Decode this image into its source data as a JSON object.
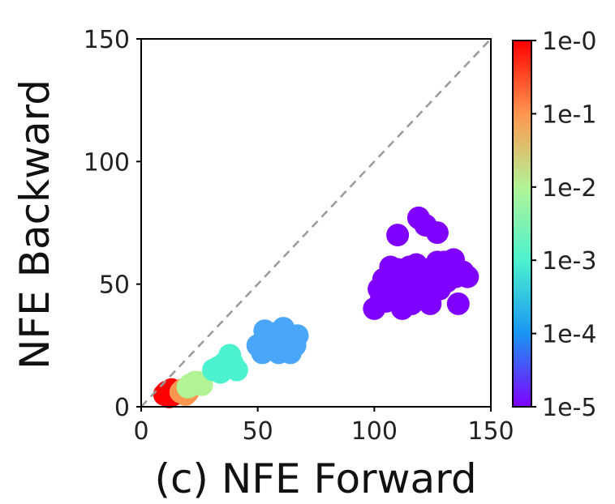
{
  "chart_data": {
    "type": "scatter",
    "xlabel": "(c) NFE Forward",
    "ylabel": "NFE Backward",
    "xlim": [
      0,
      150
    ],
    "ylim": [
      0,
      150
    ],
    "x_ticks": [
      "0",
      "50",
      "100",
      "150"
    ],
    "y_ticks": [
      "0",
      "50",
      "100",
      "150"
    ],
    "reference_line": {
      "from": [
        0,
        0
      ],
      "to": [
        150,
        150
      ],
      "style": "dashed",
      "color": "#999999"
    },
    "grid": false,
    "legend": "none",
    "colorbar": {
      "scale": "log",
      "ticks": [
        "1e-0",
        "1e-1",
        "1e-2",
        "1e-3",
        "1e-4",
        "1e-5"
      ],
      "colormap": [
        "#8000ff",
        "#1996f3",
        "#4cf2ce",
        "#b2f396",
        "#ff964f",
        "#ff0000"
      ]
    },
    "series": [
      {
        "color": "#ff0000",
        "points": [
          [
            10,
            5
          ],
          [
            12,
            4
          ],
          [
            14,
            5
          ],
          [
            11,
            6
          ],
          [
            13,
            7
          ],
          [
            12,
            5
          ]
        ]
      },
      {
        "color": "#ff964f",
        "points": [
          [
            17,
            6
          ],
          [
            19,
            5
          ],
          [
            20,
            6
          ],
          [
            18,
            7
          ]
        ]
      },
      {
        "color": "#b2f396",
        "points": [
          [
            20,
            8
          ],
          [
            22,
            9
          ],
          [
            24,
            10
          ],
          [
            26,
            9
          ],
          [
            23,
            10
          ],
          [
            21,
            9
          ]
        ]
      },
      {
        "color": "#4cf2ce",
        "points": [
          [
            31,
            15
          ],
          [
            34,
            14
          ],
          [
            37,
            16
          ],
          [
            39,
            18
          ],
          [
            41,
            15
          ],
          [
            36,
            18
          ],
          [
            38,
            21
          ],
          [
            33,
            16
          ]
        ]
      },
      {
        "color": "#4aa6fa",
        "points": [
          [
            50,
            25
          ],
          [
            52,
            22
          ],
          [
            54,
            28
          ],
          [
            56,
            24
          ],
          [
            58,
            30
          ],
          [
            60,
            25
          ],
          [
            61,
            32
          ],
          [
            63,
            28
          ],
          [
            64,
            22
          ],
          [
            66,
            25
          ],
          [
            67,
            29
          ],
          [
            55,
            27
          ],
          [
            59,
            22
          ],
          [
            62,
            24
          ],
          [
            53,
            31
          ],
          [
            57,
            27
          ]
        ]
      },
      {
        "color": "#8000ff",
        "points": [
          [
            100,
            40
          ],
          [
            102,
            48
          ],
          [
            104,
            52
          ],
          [
            105,
            43
          ],
          [
            107,
            57
          ],
          [
            108,
            45
          ],
          [
            110,
            70
          ],
          [
            111,
            52
          ],
          [
            112,
            40
          ],
          [
            113,
            55
          ],
          [
            114,
            48
          ],
          [
            115,
            57
          ],
          [
            116,
            42
          ],
          [
            117,
            52
          ],
          [
            118,
            58
          ],
          [
            119,
            77
          ],
          [
            120,
            45
          ],
          [
            121,
            50
          ],
          [
            122,
            74
          ],
          [
            123,
            55
          ],
          [
            124,
            42
          ],
          [
            125,
            50
          ],
          [
            126,
            57
          ],
          [
            127,
            71
          ],
          [
            128,
            48
          ],
          [
            129,
            53
          ],
          [
            130,
            59
          ],
          [
            131,
            51
          ],
          [
            132,
            55
          ],
          [
            134,
            60
          ],
          [
            135,
            53
          ],
          [
            136,
            42
          ],
          [
            138,
            55
          ],
          [
            140,
            53
          ],
          [
            109,
            49
          ],
          [
            106,
            50
          ],
          [
            103,
            44
          ],
          [
            112,
            46
          ],
          [
            118,
            44
          ],
          [
            124,
            54
          ],
          [
            121,
            56
          ],
          [
            115,
            51
          ],
          [
            110,
            56
          ],
          [
            127,
            59
          ]
        ]
      }
    ]
  }
}
